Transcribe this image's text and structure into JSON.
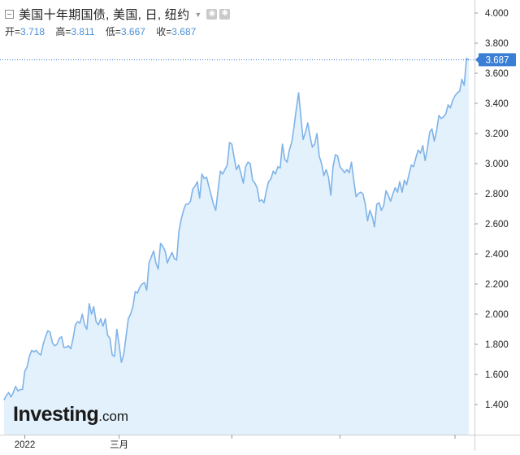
{
  "legend": {
    "title": "美国十年期国债, 美国, 日, 纽约",
    "ohlc": [
      {
        "label": "开=",
        "value": "3.718"
      },
      {
        "label": "高=",
        "value": "3.811"
      },
      {
        "label": "低=",
        "value": "3.667"
      },
      {
        "label": "收=",
        "value": "3.687"
      }
    ]
  },
  "logo": {
    "main": "Investing",
    "suffix": ".com"
  },
  "colors": {
    "line": "#7fb3e8",
    "fill": "#e2f1fb",
    "price_tag": "#3a7fd5",
    "price_line": "#2f6fd6",
    "axis": "#cfcfcf",
    "text": "#222222"
  },
  "chart_data": {
    "type": "area",
    "title": "美国十年期国债, 美国, 日, 纽约",
    "xlabel": "",
    "ylabel": "",
    "ylim": [
      1.3,
      4.05
    ],
    "y_ticks": [
      "4.000",
      "3.800",
      "3.600",
      "3.400",
      "3.200",
      "3.000",
      "2.800",
      "2.600",
      "2.400",
      "2.200",
      "2.000",
      "1.800",
      "1.600",
      "1.400"
    ],
    "x_ticks": [
      {
        "label": "2022",
        "index": 9
      },
      {
        "label": "三月",
        "index": 50
      },
      {
        "label": "",
        "index": 99
      },
      {
        "label": "",
        "index": 146
      },
      {
        "label": "",
        "index": 196
      }
    ],
    "last_value": "3.687",
    "grid": false,
    "values": [
      1.43,
      1.46,
      1.48,
      1.45,
      1.48,
      1.52,
      1.49,
      1.5,
      1.5,
      1.62,
      1.65,
      1.72,
      1.76,
      1.75,
      1.76,
      1.74,
      1.73,
      1.8,
      1.85,
      1.89,
      1.88,
      1.81,
      1.79,
      1.8,
      1.84,
      1.85,
      1.78,
      1.78,
      1.79,
      1.77,
      1.84,
      1.93,
      1.95,
      1.94,
      2.0,
      1.93,
      1.9,
      2.07,
      2.0,
      2.05,
      1.95,
      1.93,
      1.97,
      1.92,
      1.97,
      1.86,
      1.84,
      1.73,
      1.72,
      1.9,
      1.8,
      1.68,
      1.73,
      1.85,
      1.97,
      2.0,
      2.05,
      2.15,
      2.14,
      2.18,
      2.2,
      2.21,
      2.16,
      2.34,
      2.38,
      2.42,
      2.34,
      2.3,
      2.47,
      2.45,
      2.42,
      2.34,
      2.38,
      2.41,
      2.37,
      2.36,
      2.55,
      2.63,
      2.69,
      2.73,
      2.73,
      2.75,
      2.83,
      2.85,
      2.88,
      2.77,
      2.93,
      2.9,
      2.91,
      2.85,
      2.79,
      2.73,
      2.69,
      2.82,
      2.95,
      2.93,
      2.96,
      2.99,
      3.14,
      3.13,
      3.04,
      2.96,
      2.99,
      2.93,
      2.87,
      2.98,
      3.01,
      3.0,
      2.89,
      2.87,
      2.84,
      2.75,
      2.76,
      2.74,
      2.82,
      2.88,
      2.9,
      2.95,
      2.93,
      2.98,
      2.97,
      3.13,
      3.03,
      3.01,
      3.09,
      3.14,
      3.24,
      3.36,
      3.47,
      3.31,
      3.16,
      3.21,
      3.27,
      3.18,
      3.11,
      3.13,
      3.2,
      3.05,
      3.0,
      2.92,
      2.96,
      2.91,
      2.79,
      2.98,
      3.06,
      3.05,
      2.98,
      2.96,
      2.94,
      2.96,
      2.94,
      3.01,
      2.89,
      2.78,
      2.8,
      2.81,
      2.8,
      2.73,
      2.62,
      2.69,
      2.65,
      2.58,
      2.73,
      2.74,
      2.69,
      2.72,
      2.82,
      2.79,
      2.75,
      2.8,
      2.84,
      2.81,
      2.88,
      2.81,
      2.89,
      2.86,
      2.93,
      2.99,
      2.98,
      3.04,
      3.09,
      3.07,
      3.12,
      3.02,
      3.1,
      3.21,
      3.23,
      3.15,
      3.22,
      3.32,
      3.3,
      3.31,
      3.33,
      3.39,
      3.37,
      3.42,
      3.45,
      3.47,
      3.48,
      3.56,
      3.52,
      3.7,
      3.687
    ]
  }
}
